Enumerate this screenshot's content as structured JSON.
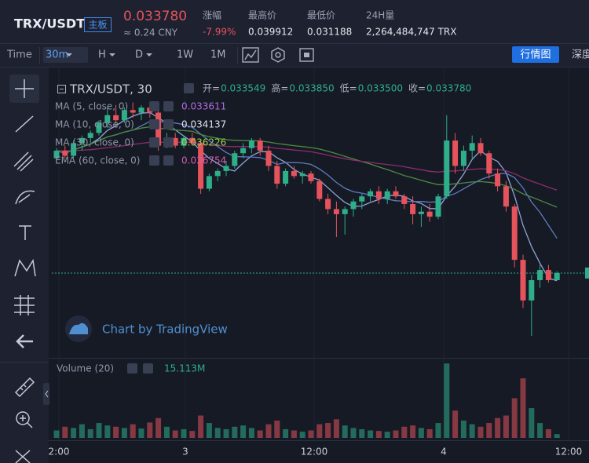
{
  "header": {
    "pair": "TRX/USDT",
    "board": "主板",
    "price": "0.033780",
    "cny": "≈ 0.24 CNY",
    "stats": [
      {
        "label": "涨幅",
        "value": "-7.99%"
      },
      {
        "label": "最高价",
        "value": "0.039912"
      },
      {
        "label": "最低价",
        "value": "0.031188"
      },
      {
        "label": "24H量",
        "value": "2,264,484,747 TRX"
      }
    ]
  },
  "toolbar": {
    "time": "Time",
    "intervals": [
      "30m",
      "H",
      "D",
      "1W",
      "1M"
    ],
    "view": "行情图",
    "depth": "深度"
  },
  "chart": {
    "legend": {
      "symbol": "TRX/USDT, 30",
      "ohlc": [
        {
          "label": "开=",
          "value": "0.033549"
        },
        {
          "label": "高=",
          "value": "0.033850"
        },
        {
          "label": "低=",
          "value": "0.033500"
        },
        {
          "label": "收=",
          "value": "0.033780"
        }
      ]
    },
    "indicators": [
      {
        "label": "MA (5, close, 0)",
        "value": "0.033611",
        "color": "#b46ae0",
        "line": "#8fa3d9",
        "period": 5,
        "kind": "ma"
      },
      {
        "label": "MA (10, close, 0)",
        "value": "0.034137",
        "color": "#dfe3ee",
        "line": "#5d7bbf",
        "period": 10,
        "kind": "ma"
      },
      {
        "label": "MA (30, close, 0)",
        "value": "0.036226",
        "color": "#9ccf4a",
        "line": "#4d8a3f",
        "period": 30,
        "kind": "ma"
      },
      {
        "label": "EMA (60, close, 0)",
        "value": "0.036754",
        "color": "#d15cae",
        "line": "#8e2c6c",
        "period": 60,
        "kind": "ema"
      }
    ],
    "watermark": "Chart by TradingView",
    "volume_title": "Volume (20)",
    "volume_label": "15.113M",
    "time_labels": [
      "2:00",
      "3",
      "12:00",
      "4",
      "12:00"
    ],
    "price_range": [
      0.03047,
      0.0416
    ],
    "volume_range": [
      0,
      310
    ],
    "up_color": "#2fae8a",
    "down_color": "#e5535c",
    "candles": [
      [
        0.0383,
        0.0387,
        0.0382,
        0.0386
      ],
      [
        0.0386,
        0.0388,
        0.0383,
        0.0384
      ],
      [
        0.0384,
        0.039,
        0.0383,
        0.0389
      ],
      [
        0.0389,
        0.0392,
        0.0386,
        0.0391
      ],
      [
        0.0391,
        0.0394,
        0.0389,
        0.0393
      ],
      [
        0.0393,
        0.0398,
        0.0392,
        0.0397
      ],
      [
        0.0397,
        0.0403,
        0.0395,
        0.04
      ],
      [
        0.04,
        0.0404,
        0.0396,
        0.0398
      ],
      [
        0.0398,
        0.0403,
        0.0397,
        0.0402
      ],
      [
        0.0402,
        0.0405,
        0.0399,
        0.0401
      ],
      [
        0.0401,
        0.0404,
        0.0398,
        0.0403
      ],
      [
        0.0403,
        0.0405,
        0.0399,
        0.0401
      ],
      [
        0.0401,
        0.0402,
        0.0386,
        0.0388
      ],
      [
        0.0388,
        0.0393,
        0.0387,
        0.0391
      ],
      [
        0.0391,
        0.0393,
        0.0387,
        0.0388
      ],
      [
        0.0388,
        0.0392,
        0.0387,
        0.0391
      ],
      [
        0.0391,
        0.0393,
        0.0388,
        0.0389
      ],
      [
        0.0389,
        0.039,
        0.0369,
        0.0371
      ],
      [
        0.0371,
        0.0377,
        0.037,
        0.0376
      ],
      [
        0.0376,
        0.0379,
        0.0374,
        0.0378
      ],
      [
        0.0378,
        0.0382,
        0.0376,
        0.038
      ],
      [
        0.038,
        0.0386,
        0.0379,
        0.0385
      ],
      [
        0.0385,
        0.0389,
        0.0383,
        0.0387
      ],
      [
        0.0387,
        0.0391,
        0.0385,
        0.039
      ],
      [
        0.039,
        0.0391,
        0.0384,
        0.0386
      ],
      [
        0.0386,
        0.0388,
        0.0378,
        0.038
      ],
      [
        0.038,
        0.0382,
        0.0371,
        0.0373
      ],
      [
        0.0373,
        0.0379,
        0.0372,
        0.0378
      ],
      [
        0.0378,
        0.038,
        0.0375,
        0.0376
      ],
      [
        0.0376,
        0.0378,
        0.0373,
        0.0377
      ],
      [
        0.0377,
        0.0378,
        0.0373,
        0.0374
      ],
      [
        0.0374,
        0.0375,
        0.0366,
        0.0367
      ],
      [
        0.0367,
        0.0369,
        0.0361,
        0.0363
      ],
      [
        0.0363,
        0.0366,
        0.0352,
        0.0361
      ],
      [
        0.0361,
        0.0364,
        0.0353,
        0.0363
      ],
      [
        0.0363,
        0.0367,
        0.036,
        0.0366
      ],
      [
        0.0366,
        0.0369,
        0.0363,
        0.0368
      ],
      [
        0.0368,
        0.0371,
        0.0366,
        0.037
      ],
      [
        0.037,
        0.0372,
        0.0365,
        0.0367
      ],
      [
        0.0367,
        0.0371,
        0.0365,
        0.037
      ],
      [
        0.037,
        0.0372,
        0.0367,
        0.0368
      ],
      [
        0.0368,
        0.0369,
        0.0363,
        0.0365
      ],
      [
        0.0365,
        0.0368,
        0.0357,
        0.0361
      ],
      [
        0.0361,
        0.0364,
        0.0356,
        0.0362
      ],
      [
        0.0362,
        0.0365,
        0.0358,
        0.036
      ],
      [
        0.036,
        0.0369,
        0.0359,
        0.0368
      ],
      [
        0.0368,
        0.04,
        0.0367,
        0.039
      ],
      [
        0.039,
        0.0393,
        0.0377,
        0.038
      ],
      [
        0.038,
        0.0388,
        0.0378,
        0.0386
      ],
      [
        0.0386,
        0.0392,
        0.0383,
        0.0389
      ],
      [
        0.0389,
        0.0391,
        0.0384,
        0.0385
      ],
      [
        0.0385,
        0.0386,
        0.0375,
        0.0377
      ],
      [
        0.0377,
        0.0379,
        0.037,
        0.0372
      ],
      [
        0.0372,
        0.0374,
        0.0362,
        0.0364
      ],
      [
        0.0364,
        0.0365,
        0.034,
        0.0343
      ],
      [
        0.0343,
        0.0345,
        0.0324,
        0.0327
      ],
      [
        0.0327,
        0.0337,
        0.0313,
        0.0335
      ],
      [
        0.0335,
        0.0341,
        0.0332,
        0.0339
      ],
      [
        0.0339,
        0.0341,
        0.0334,
        0.0335
      ],
      [
        0.0335,
        0.03385,
        0.0335,
        0.03378
      ]
    ],
    "volumes": [
      30,
      45,
      40,
      55,
      35,
      60,
      50,
      45,
      40,
      55,
      38,
      62,
      80,
      45,
      30,
      35,
      28,
      90,
      60,
      40,
      35,
      45,
      50,
      40,
      30,
      55,
      70,
      35,
      30,
      25,
      30,
      55,
      60,
      75,
      50,
      40,
      35,
      30,
      28,
      25,
      30,
      45,
      50,
      40,
      35,
      60,
      300,
      110,
      70,
      55,
      45,
      60,
      80,
      90,
      160,
      240,
      120,
      60,
      35,
      15.113
    ]
  }
}
